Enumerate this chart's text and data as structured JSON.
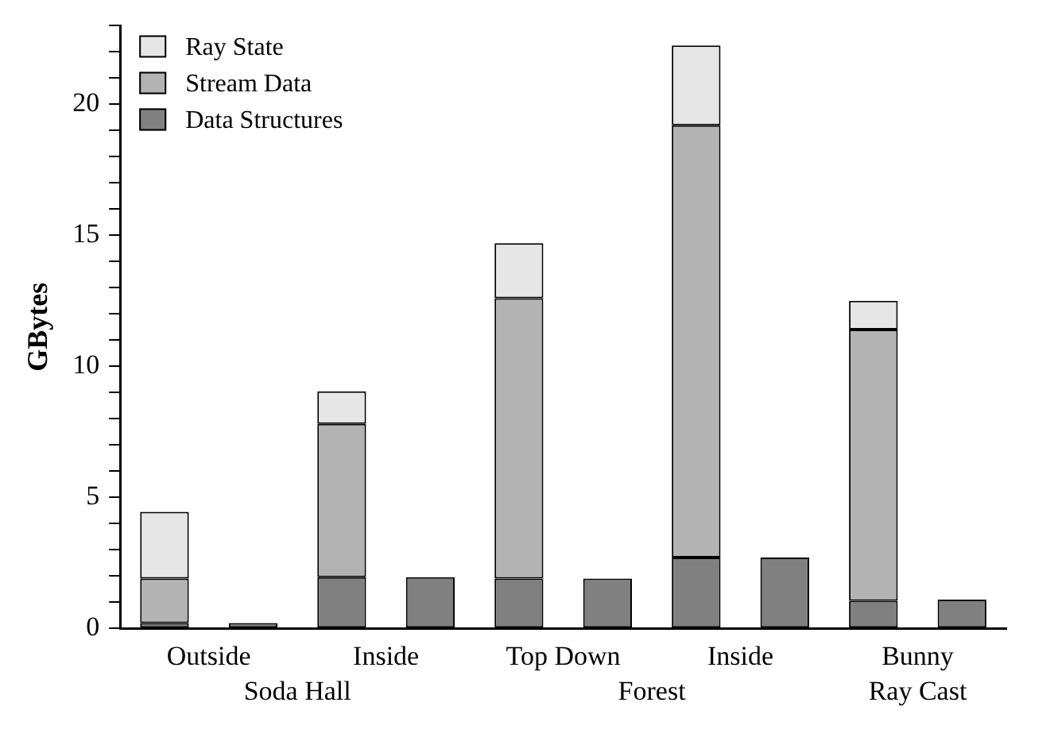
{
  "chart_data": {
    "type": "bar",
    "stacked": true,
    "ylabel": "GBytes",
    "categories": [
      "Outside",
      null,
      "Inside",
      null,
      "Top Down",
      null,
      "Inside",
      null,
      "Bunny",
      null
    ],
    "series": [
      {
        "name": "Data Structures",
        "color": "#808080",
        "values": [
          0.2,
          0.2,
          1.95,
          1.95,
          1.9,
          1.9,
          2.7,
          2.7,
          1.05,
          1.1
        ]
      },
      {
        "name": "Stream Data",
        "color": "#b3b3b3",
        "values": [
          1.7,
          null,
          5.85,
          null,
          10.7,
          null,
          16.5,
          null,
          10.35,
          null
        ]
      },
      {
        "name": "Ray State",
        "color": "#e6e6e6",
        "values": [
          2.55,
          null,
          1.25,
          null,
          2.1,
          null,
          3.05,
          null,
          1.1,
          null
        ]
      }
    ],
    "ylim": [
      0,
      23
    ],
    "yticks": [
      0,
      {
        "value": 1,
        "label": null
      },
      {
        "value": 2,
        "label": null
      },
      {
        "value": 3,
        "label": null
      },
      {
        "value": 4,
        "label": null
      },
      5,
      {
        "value": 6,
        "label": null
      },
      {
        "value": 7,
        "label": null
      },
      {
        "value": 8,
        "label": null
      },
      {
        "value": 9,
        "label": null
      },
      10,
      {
        "value": 11,
        "label": null
      },
      {
        "value": 12,
        "label": null
      },
      {
        "value": 13,
        "label": null
      },
      {
        "value": 14,
        "label": null
      },
      15,
      {
        "value": 16,
        "label": null
      },
      {
        "value": 17,
        "label": null
      },
      {
        "value": 18,
        "label": null
      },
      {
        "value": 19,
        "label": null
      },
      20,
      {
        "value": 21,
        "label": null
      },
      {
        "value": 22,
        "label": null
      },
      {
        "value": 23,
        "label": null
      }
    ],
    "grid": false,
    "legend": "top left",
    "annotations": [
      "Soda Hall",
      "Forest",
      "Ray Cast"
    ]
  }
}
